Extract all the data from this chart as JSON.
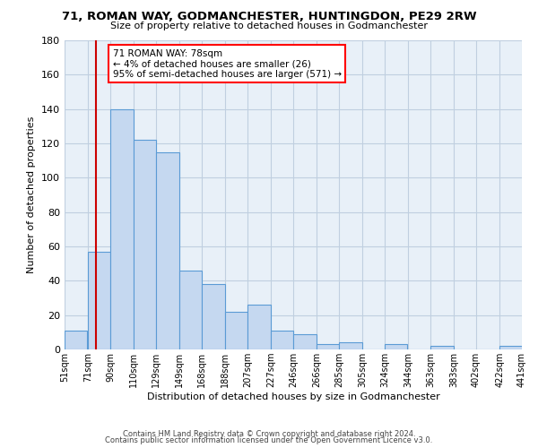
{
  "title": "71, ROMAN WAY, GODMANCHESTER, HUNTINGDON, PE29 2RW",
  "subtitle": "Size of property relative to detached houses in Godmanchester",
  "xlabel": "Distribution of detached houses by size in Godmanchester",
  "ylabel": "Number of detached properties",
  "bar_left_edges": [
    51,
    71,
    90,
    110,
    129,
    149,
    168,
    188,
    207,
    227,
    246,
    266,
    285,
    305,
    324,
    344,
    363,
    383,
    402,
    422
  ],
  "bar_widths": [
    19,
    19,
    20,
    19,
    20,
    19,
    20,
    19,
    20,
    19,
    20,
    19,
    20,
    19,
    19,
    19,
    20,
    19,
    20,
    19
  ],
  "bar_heights": [
    11,
    57,
    140,
    122,
    115,
    46,
    38,
    22,
    26,
    11,
    9,
    3,
    4,
    0,
    3,
    0,
    2,
    0,
    0,
    2
  ],
  "tick_labels": [
    "51sqm",
    "71sqm",
    "90sqm",
    "110sqm",
    "129sqm",
    "149sqm",
    "168sqm",
    "188sqm",
    "207sqm",
    "227sqm",
    "246sqm",
    "266sqm",
    "285sqm",
    "305sqm",
    "324sqm",
    "344sqm",
    "363sqm",
    "383sqm",
    "402sqm",
    "422sqm",
    "441sqm"
  ],
  "bar_color": "#c5d8f0",
  "bar_edge_color": "#5b9bd5",
  "red_line_x": 78,
  "annotation_line1": "71 ROMAN WAY: 78sqm",
  "annotation_line2": "← 4% of detached houses are smaller (26)",
  "annotation_line3": "95% of semi-detached houses are larger (571) →",
  "annotation_box_color": "white",
  "annotation_box_edge_color": "red",
  "red_line_color": "#cc0000",
  "ylim": [
    0,
    180
  ],
  "yticks": [
    0,
    20,
    40,
    60,
    80,
    100,
    120,
    140,
    160,
    180
  ],
  "footer_line1": "Contains HM Land Registry data © Crown copyright and database right 2024.",
  "footer_line2": "Contains public sector information licensed under the Open Government Licence v3.0.",
  "background_color": "#ffffff",
  "plot_bg_color": "#e8f0f8",
  "grid_color": "#c0cfe0"
}
